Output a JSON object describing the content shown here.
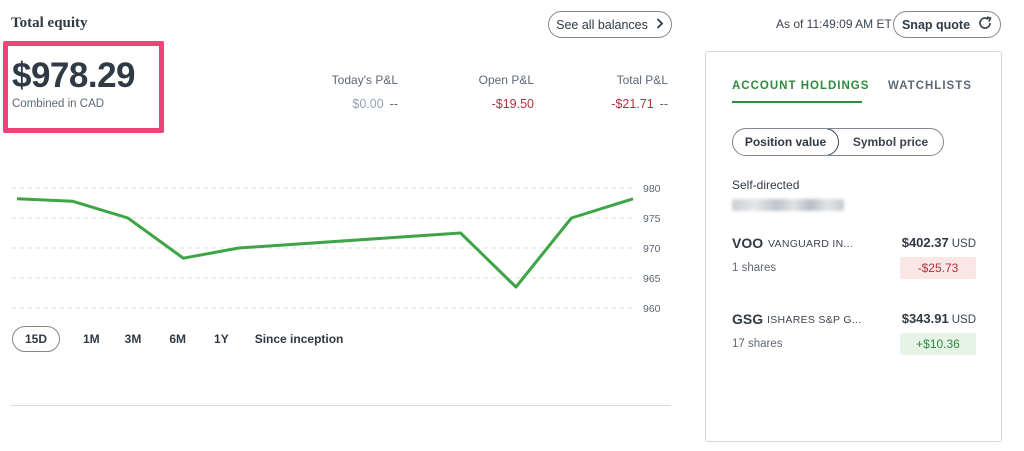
{
  "header": {
    "title": "Total equity",
    "see_all_label": "See all balances",
    "as_of": "As of 11:49:09 AM ET",
    "snap_quote_label": "Snap quote"
  },
  "equity": {
    "value": "$978.29",
    "subtitle": "Combined in CAD"
  },
  "pl": {
    "today": {
      "label": "Today's P&L",
      "value": "$0.00",
      "suffix": "--"
    },
    "open": {
      "label": "Open P&L",
      "value": "-$19.50"
    },
    "total": {
      "label": "Total P&L",
      "value": "-$21.71",
      "suffix": "--"
    }
  },
  "chart_data": {
    "type": "line",
    "ylim": [
      958,
      982
    ],
    "yticks": [
      "980",
      "975",
      "970",
      "965",
      "960"
    ],
    "ytick_values": [
      980,
      975,
      970,
      965,
      960
    ],
    "values": [
      978.2,
      977.8,
      975.0,
      968.3,
      970.0,
      972.5,
      963.5,
      975.0,
      978.2
    ],
    "x": [
      0,
      1,
      2,
      3,
      4,
      5,
      6,
      7,
      8
    ],
    "x_positions": [
      0,
      0.09,
      0.18,
      0.27,
      0.36,
      0.72,
      0.81,
      0.9,
      1.0
    ],
    "color": "#3fa446",
    "grid": "dashed-horizontal"
  },
  "ranges": [
    "15D",
    "1M",
    "3M",
    "6M",
    "1Y",
    "Since inception"
  ],
  "panel": {
    "tab_holdings": "ACCOUNT HOLDINGS",
    "tab_watchlists": "WATCHLISTS",
    "toggle_position": "Position value",
    "toggle_symbol": "Symbol price",
    "section": "Self-directed",
    "holdings": [
      {
        "symbol": "VOO",
        "name": "VANGUARD IN...",
        "price": "$402.37",
        "currency": "USD",
        "shares": "1 shares",
        "change": "-$25.73",
        "direction": "neg"
      },
      {
        "symbol": "GSG",
        "name": "ISHARES S&P G...",
        "price": "$343.91",
        "currency": "USD",
        "shares": "17 shares",
        "change": "+$10.36",
        "direction": "pos"
      }
    ]
  },
  "colors": {
    "accent_green": "#2e8a3c",
    "negative_red": "#b5303e",
    "highlight_pink": "#f0437a"
  }
}
